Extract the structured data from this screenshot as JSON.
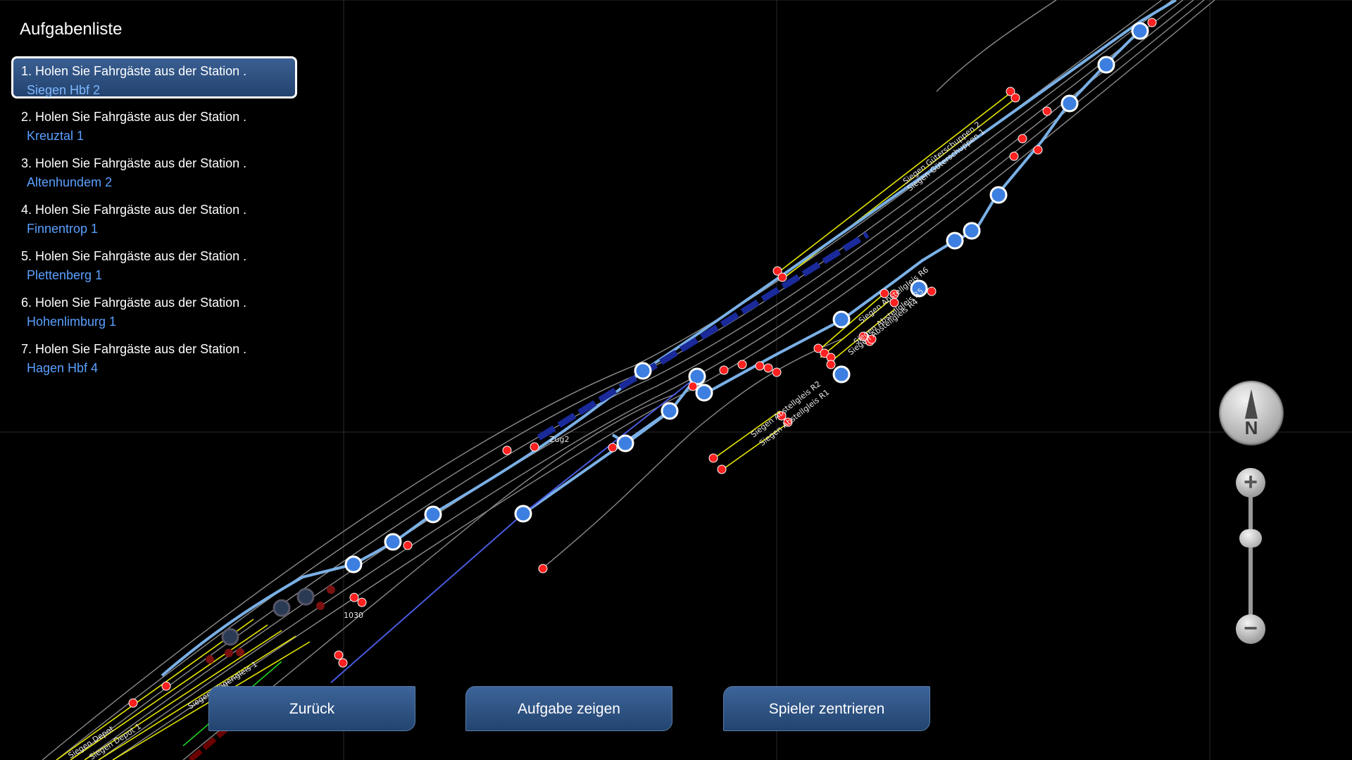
{
  "tasks": {
    "title": "Aufgabenliste",
    "items": [
      {
        "text": "1. Holen Sie Fahrgäste aus der Station .",
        "station": "Siegen Hbf 2",
        "active": true
      },
      {
        "text": "2. Holen Sie Fahrgäste aus der Station .",
        "station": "Kreuztal 1"
      },
      {
        "text": "3. Holen Sie Fahrgäste aus der Station .",
        "station": "Altenhundem 2"
      },
      {
        "text": "4. Holen Sie Fahrgäste aus der Station .",
        "station": "Finnentrop 1"
      },
      {
        "text": "5. Holen Sie Fahrgäste aus der Station .",
        "station": "Plettenberg 1"
      },
      {
        "text": "6. Holen Sie Fahrgäste aus der Station .",
        "station": "Hohenlimburg 1"
      },
      {
        "text": "7. Holen Sie Fahrgäste aus der Station .",
        "station": "Hagen Hbf 4"
      }
    ]
  },
  "buttons": {
    "back": "Zurück",
    "show_task": "Aufgabe zeigen",
    "center_player": "Spieler zentrieren"
  },
  "compass": {
    "label": "N"
  },
  "zoom": {
    "plus": "+",
    "minus": "−"
  },
  "map": {
    "train_labels": [
      "Zug2",
      "1030"
    ],
    "track_labels": [
      "Siegen Güterschuppen 2",
      "Siegen Güterschuppen 1",
      "Siegen Abstellgleis R2",
      "Siegen Abstellgleis R1",
      "Siegen Abstellgleis R6",
      "Siegen Abstellgleis R5",
      "Siegen Abstellgleis R4",
      "Siegen Depot",
      "Siegen Depot 1",
      "Siegen Wagengleis 1"
    ],
    "colors": {
      "background": "#000000",
      "grid": "#2a2a2a",
      "track": "#9a9a9a",
      "main_track": "#7ab0e6",
      "siding": "#e6e600",
      "signal": "#ff2020",
      "station_node": "#3c7fe0",
      "train": "#1a2a9a"
    }
  }
}
